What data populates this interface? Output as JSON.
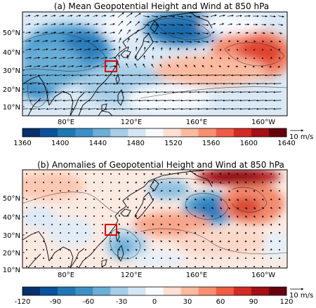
{
  "panels": [
    {
      "title": "(a) Mean Geopotential Height and Wind at 850 hPa",
      "lat_ticks": [
        "50°N",
        "40°N",
        "30°N",
        "20°N",
        "10°N"
      ],
      "lon_ticks": [
        "80°E",
        "120°E",
        "160°E",
        "160°W"
      ],
      "colorbar": {
        "ticks": [
          "1360",
          "1400",
          "1440",
          "1480",
          "1520",
          "1560",
          "1600",
          "1640"
        ],
        "colors": [
          "#08306b",
          "#0b519b",
          "#1f78b4",
          "#3d8fc6",
          "#6baed6",
          "#a6cee8",
          "#d4e6f4",
          "#f7fbff",
          "#fde0d2",
          "#fcbba1",
          "#f98f70",
          "#ef5b45",
          "#d42a24",
          "#a50f15",
          "#67000d"
        ]
      },
      "vector_key": {
        "label": "10 m/s"
      },
      "region_box": {
        "color": "#e00000"
      }
    },
    {
      "title": "(b) Anomalies of Geopotential Height and Wind at 850 hPa",
      "lat_ticks": [
        "50°N",
        "40°N",
        "30°N",
        "20°N",
        "10°N"
      ],
      "lon_ticks": [
        "80°E",
        "120°E",
        "160°E",
        "160°W"
      ],
      "colorbar": {
        "ticks": [
          "-120",
          "-90",
          "-60",
          "-30",
          "0",
          "30",
          "60",
          "90",
          "120"
        ],
        "colors": [
          "#08306b",
          "#0b519b",
          "#1f78b4",
          "#3d8fc6",
          "#6baed6",
          "#a6cee8",
          "#d4e6f4",
          "#f7fbff",
          "#fde0d2",
          "#fcbba1",
          "#f98f70",
          "#ef5b45",
          "#d42a24",
          "#a50f15",
          "#67000d"
        ]
      },
      "vector_key": {
        "label": "10 m/s"
      },
      "region_box": {
        "color": "#e00000"
      }
    }
  ]
}
